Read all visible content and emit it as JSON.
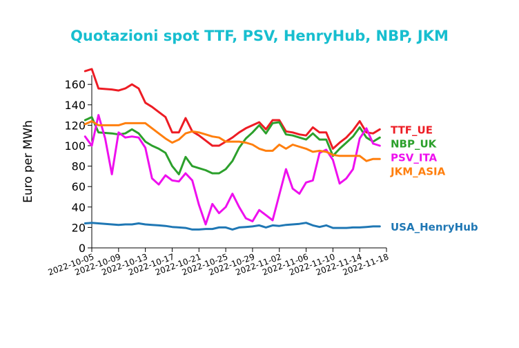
{
  "chart_data": {
    "type": "line",
    "title": "Quotazioni spot TTF, PSV, HenryHub, NBP, JKM",
    "title_color": "#17becf",
    "xlabel": "",
    "ylabel": "Euro per MWh",
    "ylim": [
      0,
      175
    ],
    "yticks": [
      0,
      20,
      40,
      60,
      80,
      100,
      120,
      140,
      160
    ],
    "xlim": [
      "2022-10-05",
      "2022-11-18"
    ],
    "xticks": [
      "2022-10-05",
      "2022-10-09",
      "2022-10-13",
      "2022-10-17",
      "2022-10-21",
      "2022-10-25",
      "2022-10-29",
      "2022-11-02",
      "2022-11-06",
      "2022-11-10",
      "2022-11-14",
      "2022-11-18"
    ],
    "grid": false,
    "legend": "right",
    "series": [
      {
        "name": "TTF_UE",
        "color": "#ed1c24",
        "points": [
          [
            "2022-10-04",
            173
          ],
          [
            "2022-10-05",
            175
          ],
          [
            "2022-10-06",
            156
          ],
          [
            "2022-10-07",
            155.5
          ],
          [
            "2022-10-08",
            155
          ],
          [
            "2022-10-09",
            154
          ],
          [
            "2022-10-10",
            156
          ],
          [
            "2022-10-11",
            160
          ],
          [
            "2022-10-12",
            156
          ],
          [
            "2022-10-13",
            142
          ],
          [
            "2022-10-14",
            138
          ],
          [
            "2022-10-15",
            133
          ],
          [
            "2022-10-16",
            128
          ],
          [
            "2022-10-17",
            113
          ],
          [
            "2022-10-18",
            113
          ],
          [
            "2022-10-19",
            127
          ],
          [
            "2022-10-20",
            114
          ],
          [
            "2022-10-21",
            110
          ],
          [
            "2022-10-22",
            105
          ],
          [
            "2022-10-23",
            100
          ],
          [
            "2022-10-24",
            100
          ],
          [
            "2022-10-25",
            104
          ],
          [
            "2022-10-26",
            108
          ],
          [
            "2022-10-27",
            113
          ],
          [
            "2022-10-28",
            117
          ],
          [
            "2022-10-29",
            120
          ],
          [
            "2022-10-30",
            123
          ],
          [
            "2022-10-31",
            116
          ],
          [
            "2022-11-01",
            125
          ],
          [
            "2022-11-02",
            125
          ],
          [
            "2022-11-03",
            114
          ],
          [
            "2022-11-04",
            113
          ],
          [
            "2022-11-05",
            111
          ],
          [
            "2022-11-06",
            110
          ],
          [
            "2022-11-07",
            118
          ],
          [
            "2022-11-08",
            113
          ],
          [
            "2022-11-09",
            113
          ],
          [
            "2022-11-10",
            97
          ],
          [
            "2022-11-11",
            103
          ],
          [
            "2022-11-12",
            108
          ],
          [
            "2022-11-13",
            115
          ],
          [
            "2022-11-14",
            124
          ],
          [
            "2022-11-15",
            113
          ],
          [
            "2022-11-16",
            112
          ],
          [
            "2022-11-17",
            116
          ]
        ]
      },
      {
        "name": "NBP_UK",
        "color": "#2ca02c",
        "points": [
          [
            "2022-10-04",
            125
          ],
          [
            "2022-10-05",
            128
          ],
          [
            "2022-10-06",
            113
          ],
          [
            "2022-10-07",
            112.5
          ],
          [
            "2022-10-08",
            112
          ],
          [
            "2022-10-09",
            111
          ],
          [
            "2022-10-10",
            112
          ],
          [
            "2022-10-11",
            116
          ],
          [
            "2022-10-12",
            112
          ],
          [
            "2022-10-13",
            104
          ],
          [
            "2022-10-14",
            100
          ],
          [
            "2022-10-15",
            97
          ],
          [
            "2022-10-16",
            93
          ],
          [
            "2022-10-17",
            80
          ],
          [
            "2022-10-18",
            72
          ],
          [
            "2022-10-19",
            89
          ],
          [
            "2022-10-20",
            80
          ],
          [
            "2022-10-21",
            78
          ],
          [
            "2022-10-22",
            76
          ],
          [
            "2022-10-23",
            73
          ],
          [
            "2022-10-24",
            73
          ],
          [
            "2022-10-25",
            77
          ],
          [
            "2022-10-26",
            85
          ],
          [
            "2022-10-27",
            98
          ],
          [
            "2022-10-28",
            107
          ],
          [
            "2022-10-29",
            113
          ],
          [
            "2022-10-30",
            120
          ],
          [
            "2022-10-31",
            112
          ],
          [
            "2022-11-01",
            122
          ],
          [
            "2022-11-02",
            123
          ],
          [
            "2022-11-03",
            111
          ],
          [
            "2022-11-04",
            110
          ],
          [
            "2022-11-05",
            108
          ],
          [
            "2022-11-06",
            106
          ],
          [
            "2022-11-07",
            112
          ],
          [
            "2022-11-08",
            106
          ],
          [
            "2022-11-09",
            106
          ],
          [
            "2022-11-10",
            90
          ],
          [
            "2022-11-11",
            97
          ],
          [
            "2022-11-12",
            103
          ],
          [
            "2022-11-13",
            109
          ],
          [
            "2022-11-14",
            118
          ],
          [
            "2022-11-15",
            108
          ],
          [
            "2022-11-16",
            104
          ],
          [
            "2022-11-17",
            108
          ]
        ]
      },
      {
        "name": "PSV_ITA",
        "color": "#ee10ee",
        "points": [
          [
            "2022-10-04",
            109
          ],
          [
            "2022-10-05",
            100
          ],
          [
            "2022-10-06",
            130
          ],
          [
            "2022-10-07",
            107
          ],
          [
            "2022-10-08",
            72
          ],
          [
            "2022-10-09",
            113
          ],
          [
            "2022-10-10",
            108
          ],
          [
            "2022-10-11",
            109
          ],
          [
            "2022-10-12",
            108
          ],
          [
            "2022-10-13",
            98
          ],
          [
            "2022-10-14",
            68
          ],
          [
            "2022-10-15",
            62
          ],
          [
            "2022-10-16",
            71
          ],
          [
            "2022-10-17",
            66
          ],
          [
            "2022-10-18",
            65
          ],
          [
            "2022-10-19",
            73
          ],
          [
            "2022-10-20",
            66
          ],
          [
            "2022-10-21",
            42
          ],
          [
            "2022-10-22",
            23
          ],
          [
            "2022-10-23",
            43
          ],
          [
            "2022-10-24",
            34
          ],
          [
            "2022-10-25",
            40
          ],
          [
            "2022-10-26",
            53
          ],
          [
            "2022-10-27",
            40
          ],
          [
            "2022-10-28",
            29
          ],
          [
            "2022-10-29",
            26
          ],
          [
            "2022-10-30",
            37
          ],
          [
            "2022-10-31",
            32
          ],
          [
            "2022-11-01",
            27
          ],
          [
            "2022-11-02",
            52
          ],
          [
            "2022-11-03",
            77
          ],
          [
            "2022-11-04",
            58
          ],
          [
            "2022-11-05",
            53
          ],
          [
            "2022-11-06",
            64
          ],
          [
            "2022-11-07",
            66
          ],
          [
            "2022-11-08",
            93
          ],
          [
            "2022-11-09",
            96
          ],
          [
            "2022-11-10",
            86
          ],
          [
            "2022-11-11",
            63
          ],
          [
            "2022-11-12",
            68
          ],
          [
            "2022-11-13",
            77
          ],
          [
            "2022-11-14",
            107
          ],
          [
            "2022-11-15",
            117
          ],
          [
            "2022-11-16",
            102
          ],
          [
            "2022-11-17",
            100
          ]
        ]
      },
      {
        "name": "JKM_ASIA",
        "color": "#ff7f0e",
        "points": [
          [
            "2022-10-04",
            121
          ],
          [
            "2022-10-05",
            124
          ],
          [
            "2022-10-06",
            120
          ],
          [
            "2022-10-07",
            120
          ],
          [
            "2022-10-08",
            120
          ],
          [
            "2022-10-09",
            120
          ],
          [
            "2022-10-10",
            122
          ],
          [
            "2022-10-11",
            122
          ],
          [
            "2022-10-12",
            122
          ],
          [
            "2022-10-13",
            122
          ],
          [
            "2022-10-14",
            117
          ],
          [
            "2022-10-15",
            112
          ],
          [
            "2022-10-16",
            107
          ],
          [
            "2022-10-17",
            103
          ],
          [
            "2022-10-18",
            106
          ],
          [
            "2022-10-19",
            112
          ],
          [
            "2022-10-20",
            114
          ],
          [
            "2022-10-21",
            113
          ],
          [
            "2022-10-22",
            111
          ],
          [
            "2022-10-23",
            109
          ],
          [
            "2022-10-24",
            108
          ],
          [
            "2022-10-25",
            104
          ],
          [
            "2022-10-26",
            104
          ],
          [
            "2022-10-27",
            104
          ],
          [
            "2022-10-28",
            103
          ],
          [
            "2022-10-29",
            101
          ],
          [
            "2022-10-30",
            97
          ],
          [
            "2022-10-31",
            95
          ],
          [
            "2022-11-01",
            95
          ],
          [
            "2022-11-02",
            101
          ],
          [
            "2022-11-03",
            97
          ],
          [
            "2022-11-04",
            101
          ],
          [
            "2022-11-05",
            99
          ],
          [
            "2022-11-06",
            97
          ],
          [
            "2022-11-07",
            94
          ],
          [
            "2022-11-08",
            95
          ],
          [
            "2022-11-09",
            94
          ],
          [
            "2022-11-10",
            91
          ],
          [
            "2022-11-11",
            90
          ],
          [
            "2022-11-12",
            90
          ],
          [
            "2022-11-13",
            90
          ],
          [
            "2022-11-14",
            90
          ],
          [
            "2022-11-15",
            85
          ],
          [
            "2022-11-16",
            87
          ],
          [
            "2022-11-17",
            87
          ]
        ]
      },
      {
        "name": "USA_HenryHub",
        "color": "#1f77b4",
        "points": [
          [
            "2022-10-04",
            24
          ],
          [
            "2022-10-05",
            24.5
          ],
          [
            "2022-10-06",
            24
          ],
          [
            "2022-10-07",
            23.5
          ],
          [
            "2022-10-08",
            23
          ],
          [
            "2022-10-09",
            22.5
          ],
          [
            "2022-10-10",
            23
          ],
          [
            "2022-10-11",
            23
          ],
          [
            "2022-10-12",
            24
          ],
          [
            "2022-10-13",
            23
          ],
          [
            "2022-10-14",
            22.5
          ],
          [
            "2022-10-15",
            22
          ],
          [
            "2022-10-16",
            21.5
          ],
          [
            "2022-10-17",
            20.5
          ],
          [
            "2022-10-18",
            20
          ],
          [
            "2022-10-19",
            19.5
          ],
          [
            "2022-10-20",
            18
          ],
          [
            "2022-10-21",
            18
          ],
          [
            "2022-10-22",
            18.5
          ],
          [
            "2022-10-23",
            18.5
          ],
          [
            "2022-10-24",
            20
          ],
          [
            "2022-10-25",
            20
          ],
          [
            "2022-10-26",
            18
          ],
          [
            "2022-10-27",
            20
          ],
          [
            "2022-10-28",
            20.5
          ],
          [
            "2022-10-29",
            21
          ],
          [
            "2022-10-30",
            22
          ],
          [
            "2022-10-31",
            20
          ],
          [
            "2022-11-01",
            22
          ],
          [
            "2022-11-02",
            21.5
          ],
          [
            "2022-11-03",
            22.5
          ],
          [
            "2022-11-04",
            23
          ],
          [
            "2022-11-05",
            23.5
          ],
          [
            "2022-11-06",
            24.5
          ],
          [
            "2022-11-07",
            22
          ],
          [
            "2022-11-08",
            20.5
          ],
          [
            "2022-11-09",
            22
          ],
          [
            "2022-11-10",
            19.5
          ],
          [
            "2022-11-11",
            19.5
          ],
          [
            "2022-11-12",
            19.5
          ],
          [
            "2022-11-13",
            20
          ],
          [
            "2022-11-14",
            20
          ],
          [
            "2022-11-15",
            20.5
          ],
          [
            "2022-11-16",
            21
          ],
          [
            "2022-11-17",
            21
          ]
        ]
      }
    ]
  }
}
